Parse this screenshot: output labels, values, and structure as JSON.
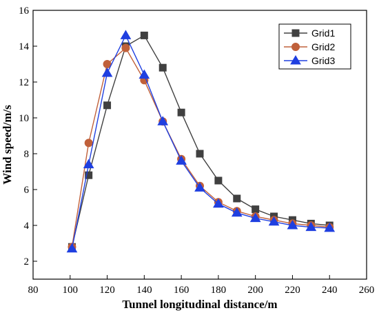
{
  "chart_data": {
    "type": "line",
    "xlabel": "Tunnel longitudinal distance/m",
    "ylabel": "Wind speed/m/s",
    "xlim": [
      80,
      260
    ],
    "ylim": [
      1,
      16
    ],
    "xticks": [
      80,
      100,
      120,
      140,
      160,
      180,
      200,
      220,
      240,
      260
    ],
    "yticks": [
      2,
      4,
      6,
      8,
      10,
      12,
      14,
      16
    ],
    "grid": false,
    "legend_position": "top-right",
    "series": [
      {
        "name": "Grid1",
        "color": "#404040",
        "marker": "square",
        "x": [
          101,
          110,
          120,
          130,
          140,
          150,
          160,
          170,
          180,
          190,
          200,
          210,
          220,
          230,
          240
        ],
        "y": [
          2.8,
          6.8,
          10.7,
          14.0,
          14.6,
          12.8,
          10.3,
          8.0,
          6.5,
          5.5,
          4.9,
          4.5,
          4.3,
          4.1,
          4.0
        ]
      },
      {
        "name": "Grid2",
        "color": "#c0603a",
        "marker": "circle",
        "x": [
          101,
          110,
          120,
          130,
          140,
          150,
          160,
          170,
          180,
          190,
          200,
          210,
          220,
          230,
          240
        ],
        "y": [
          2.8,
          8.6,
          13.0,
          13.9,
          12.1,
          9.8,
          7.7,
          6.2,
          5.3,
          4.8,
          4.5,
          4.3,
          4.1,
          4.0,
          3.9
        ]
      },
      {
        "name": "Grid3",
        "color": "#1f3fe0",
        "marker": "triangle",
        "x": [
          101,
          110,
          120,
          130,
          140,
          150,
          160,
          170,
          180,
          190,
          200,
          210,
          220,
          230,
          240
        ],
        "y": [
          2.7,
          7.4,
          12.5,
          14.6,
          12.4,
          9.8,
          7.6,
          6.1,
          5.2,
          4.7,
          4.4,
          4.2,
          4.0,
          3.9,
          3.85
        ]
      }
    ]
  }
}
